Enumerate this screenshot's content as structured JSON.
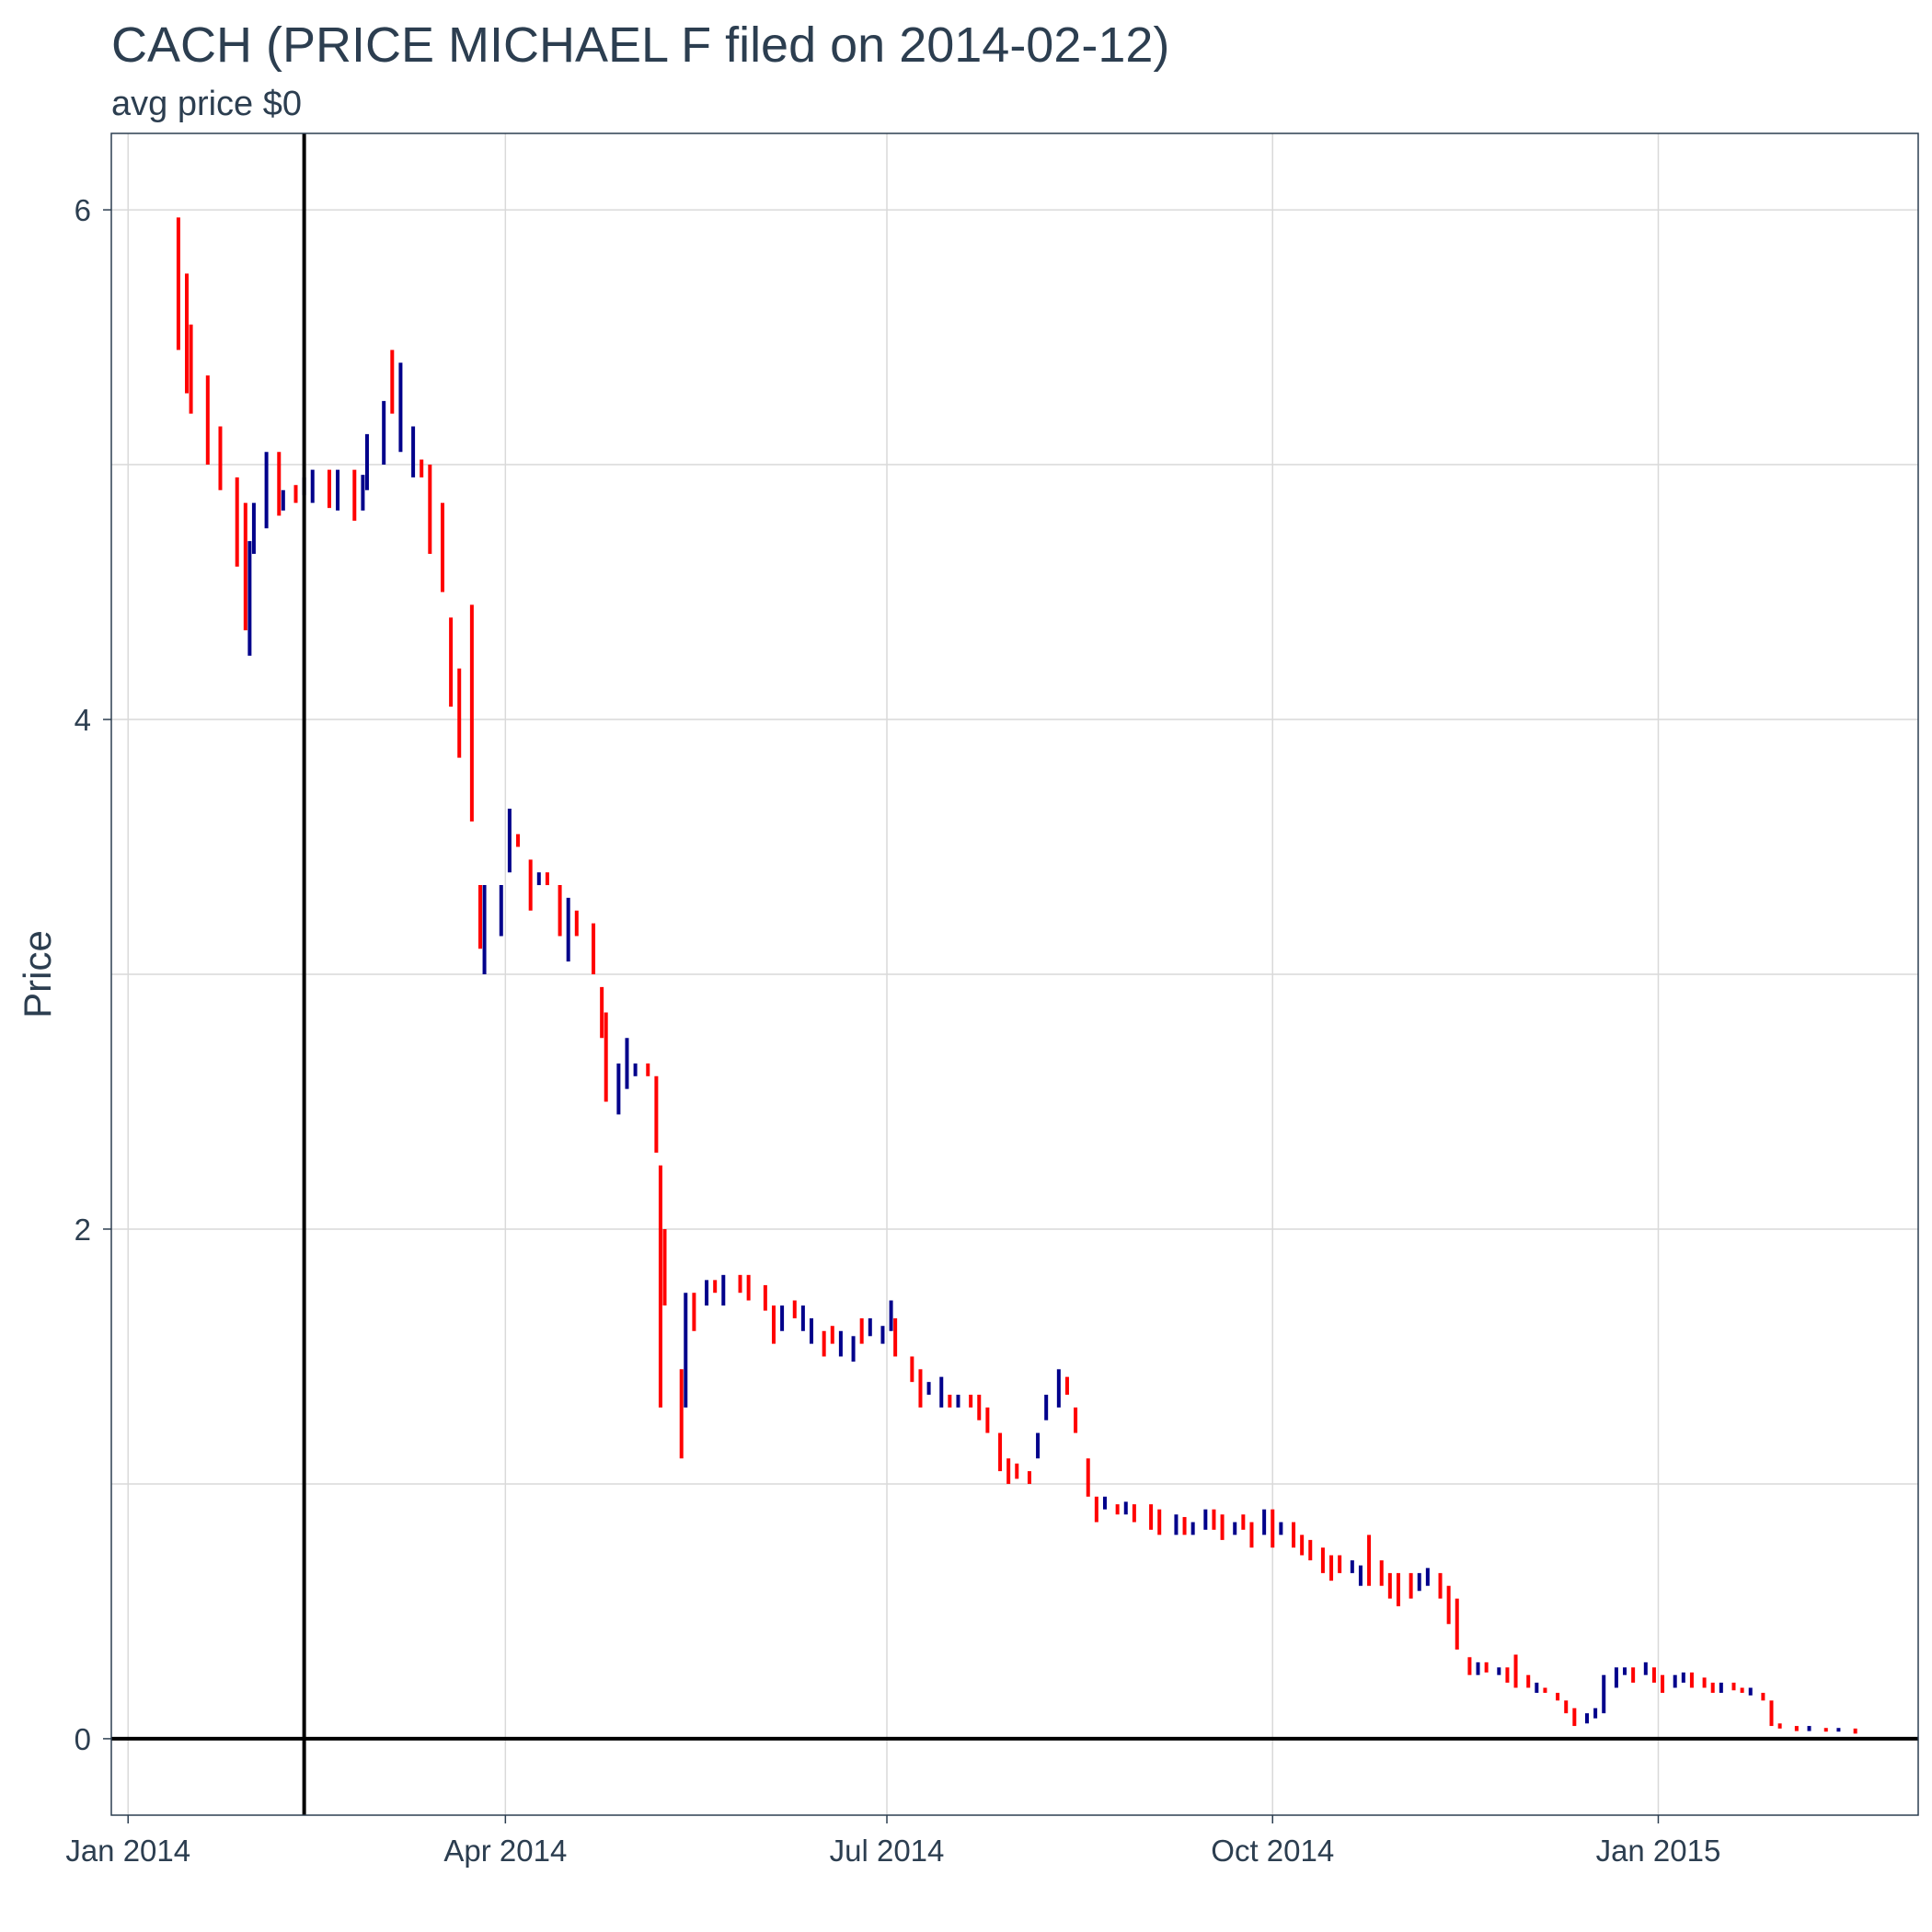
{
  "chart_data": {
    "type": "bar",
    "subtype": "ohlc-range-bars",
    "title": "CACH (PRICE MICHAEL F filed on 2014-02-12)",
    "subtitle": "avg price $0",
    "xlabel": "",
    "ylabel": "Price",
    "xlim": [
      "2013-12-28",
      "2015-03-04"
    ],
    "ylim": [
      -0.3,
      6.3
    ],
    "x_ticks": [
      {
        "date": "2014-01-01",
        "label": "Jan 2014"
      },
      {
        "date": "2014-04-01",
        "label": "Apr 2014"
      },
      {
        "date": "2014-07-01",
        "label": "Jul 2014"
      },
      {
        "date": "2014-10-01",
        "label": "Oct 2014"
      },
      {
        "date": "2015-01-01",
        "label": "Jan 2015"
      }
    ],
    "y_ticks": [
      0,
      2,
      4,
      6
    ],
    "y_minor_gridlines": [
      1,
      3,
      5
    ],
    "grid": true,
    "reference_lines": {
      "vertical_date": "2014-02-12",
      "horizontal_value": 0
    },
    "colors": {
      "up": "#00008b",
      "down": "#ff0000",
      "grid": "#d9d9d9",
      "text": "#2c3e50",
      "reference": "#000000"
    },
    "series": [
      {
        "values": [
          [
            "2014-01-13",
            5.45,
            5.97,
            "down"
          ],
          [
            "2014-01-15",
            5.28,
            5.75,
            "down"
          ],
          [
            "2014-01-16",
            5.2,
            5.55,
            "down"
          ],
          [
            "2014-01-20",
            5.0,
            5.35,
            "down"
          ],
          [
            "2014-01-23",
            4.9,
            5.15,
            "down"
          ],
          [
            "2014-01-27",
            4.6,
            4.95,
            "down"
          ],
          [
            "2014-01-29",
            4.35,
            4.85,
            "down"
          ],
          [
            "2014-01-30",
            4.25,
            4.7,
            "up"
          ],
          [
            "2014-01-31",
            4.65,
            4.85,
            "up"
          ],
          [
            "2014-02-03",
            4.75,
            5.05,
            "up"
          ],
          [
            "2014-02-06",
            4.8,
            5.05,
            "down"
          ],
          [
            "2014-02-07",
            4.82,
            4.9,
            "up"
          ],
          [
            "2014-02-10",
            4.85,
            4.92,
            "down"
          ],
          [
            "2014-02-12",
            4.88,
            4.95,
            "up"
          ],
          [
            "2014-02-14",
            4.85,
            4.98,
            "up"
          ],
          [
            "2014-02-18",
            4.83,
            4.98,
            "down"
          ],
          [
            "2014-02-20",
            4.82,
            4.98,
            "up"
          ],
          [
            "2014-02-24",
            4.78,
            4.98,
            "down"
          ],
          [
            "2014-02-26",
            4.82,
            4.96,
            "up"
          ],
          [
            "2014-02-27",
            4.9,
            5.12,
            "up"
          ],
          [
            "2014-03-03",
            5.0,
            5.25,
            "up"
          ],
          [
            "2014-03-05",
            5.2,
            5.45,
            "down"
          ],
          [
            "2014-03-07",
            5.05,
            5.4,
            "up"
          ],
          [
            "2014-03-10",
            4.95,
            5.15,
            "up"
          ],
          [
            "2014-03-12",
            4.95,
            5.02,
            "down"
          ],
          [
            "2014-03-14",
            4.65,
            5.0,
            "down"
          ],
          [
            "2014-03-17",
            4.5,
            4.85,
            "down"
          ],
          [
            "2014-03-19",
            4.05,
            4.4,
            "down"
          ],
          [
            "2014-03-21",
            3.85,
            4.2,
            "down"
          ],
          [
            "2014-03-24",
            3.6,
            4.45,
            "down"
          ],
          [
            "2014-03-26",
            3.1,
            3.35,
            "down"
          ],
          [
            "2014-03-27",
            3.0,
            3.35,
            "up"
          ],
          [
            "2014-03-31",
            3.15,
            3.35,
            "up"
          ],
          [
            "2014-04-02",
            3.4,
            3.65,
            "up"
          ],
          [
            "2014-04-04",
            3.5,
            3.55,
            "down"
          ],
          [
            "2014-04-07",
            3.25,
            3.45,
            "down"
          ],
          [
            "2014-04-09",
            3.35,
            3.4,
            "up"
          ],
          [
            "2014-04-11",
            3.35,
            3.4,
            "down"
          ],
          [
            "2014-04-14",
            3.15,
            3.35,
            "down"
          ],
          [
            "2014-04-16",
            3.05,
            3.3,
            "up"
          ],
          [
            "2014-04-18",
            3.15,
            3.25,
            "down"
          ],
          [
            "2014-04-22",
            3.0,
            3.2,
            "down"
          ],
          [
            "2014-04-24",
            2.75,
            2.95,
            "down"
          ],
          [
            "2014-04-25",
            2.5,
            2.85,
            "down"
          ],
          [
            "2014-04-28",
            2.45,
            2.65,
            "up"
          ],
          [
            "2014-04-30",
            2.55,
            2.75,
            "up"
          ],
          [
            "2014-05-02",
            2.6,
            2.65,
            "up"
          ],
          [
            "2014-05-05",
            2.6,
            2.65,
            "down"
          ],
          [
            "2014-05-07",
            2.3,
            2.6,
            "down"
          ],
          [
            "2014-05-08",
            1.3,
            2.25,
            "down"
          ],
          [
            "2014-05-09",
            1.7,
            2.0,
            "down"
          ],
          [
            "2014-05-13",
            1.1,
            1.45,
            "down"
          ],
          [
            "2014-05-14",
            1.3,
            1.75,
            "up"
          ],
          [
            "2014-05-16",
            1.6,
            1.75,
            "down"
          ],
          [
            "2014-05-19",
            1.7,
            1.8,
            "up"
          ],
          [
            "2014-05-21",
            1.75,
            1.8,
            "down"
          ],
          [
            "2014-05-23",
            1.7,
            1.82,
            "up"
          ],
          [
            "2014-05-27",
            1.75,
            1.82,
            "down"
          ],
          [
            "2014-05-29",
            1.72,
            1.82,
            "down"
          ],
          [
            "2014-06-02",
            1.68,
            1.78,
            "down"
          ],
          [
            "2014-06-04",
            1.55,
            1.7,
            "down"
          ],
          [
            "2014-06-06",
            1.6,
            1.7,
            "up"
          ],
          [
            "2014-06-09",
            1.65,
            1.72,
            "down"
          ],
          [
            "2014-06-11",
            1.6,
            1.7,
            "up"
          ],
          [
            "2014-06-13",
            1.55,
            1.65,
            "up"
          ],
          [
            "2014-06-16",
            1.5,
            1.6,
            "down"
          ],
          [
            "2014-06-18",
            1.55,
            1.62,
            "down"
          ],
          [
            "2014-06-20",
            1.5,
            1.6,
            "up"
          ],
          [
            "2014-06-23",
            1.48,
            1.58,
            "up"
          ],
          [
            "2014-06-25",
            1.55,
            1.65,
            "down"
          ],
          [
            "2014-06-27",
            1.58,
            1.65,
            "up"
          ],
          [
            "2014-06-30",
            1.55,
            1.62,
            "up"
          ],
          [
            "2014-07-02",
            1.6,
            1.72,
            "up"
          ],
          [
            "2014-07-03",
            1.5,
            1.65,
            "down"
          ],
          [
            "2014-07-07",
            1.4,
            1.5,
            "down"
          ],
          [
            "2014-07-09",
            1.3,
            1.45,
            "down"
          ],
          [
            "2014-07-11",
            1.35,
            1.4,
            "up"
          ],
          [
            "2014-07-14",
            1.3,
            1.42,
            "up"
          ],
          [
            "2014-07-16",
            1.3,
            1.35,
            "down"
          ],
          [
            "2014-07-18",
            1.3,
            1.35,
            "up"
          ],
          [
            "2014-07-21",
            1.3,
            1.35,
            "down"
          ],
          [
            "2014-07-23",
            1.25,
            1.35,
            "down"
          ],
          [
            "2014-07-25",
            1.2,
            1.3,
            "down"
          ],
          [
            "2014-07-28",
            1.05,
            1.2,
            "down"
          ],
          [
            "2014-07-30",
            1.0,
            1.1,
            "down"
          ],
          [
            "2014-08-01",
            1.02,
            1.08,
            "down"
          ],
          [
            "2014-08-04",
            1.0,
            1.05,
            "down"
          ],
          [
            "2014-08-06",
            1.1,
            1.2,
            "up"
          ],
          [
            "2014-08-08",
            1.25,
            1.35,
            "up"
          ],
          [
            "2014-08-11",
            1.3,
            1.45,
            "up"
          ],
          [
            "2014-08-13",
            1.35,
            1.42,
            "down"
          ],
          [
            "2014-08-15",
            1.2,
            1.3,
            "down"
          ],
          [
            "2014-08-18",
            0.95,
            1.1,
            "down"
          ],
          [
            "2014-08-20",
            0.85,
            0.95,
            "down"
          ],
          [
            "2014-08-22",
            0.9,
            0.95,
            "up"
          ],
          [
            "2014-08-25",
            0.88,
            0.92,
            "down"
          ],
          [
            "2014-08-27",
            0.88,
            0.93,
            "up"
          ],
          [
            "2014-08-29",
            0.85,
            0.92,
            "down"
          ],
          [
            "2014-09-02",
            0.82,
            0.92,
            "down"
          ],
          [
            "2014-09-04",
            0.8,
            0.9,
            "down"
          ],
          [
            "2014-09-08",
            0.8,
            0.88,
            "up"
          ],
          [
            "2014-09-10",
            0.8,
            0.87,
            "down"
          ],
          [
            "2014-09-12",
            0.8,
            0.85,
            "up"
          ],
          [
            "2014-09-15",
            0.82,
            0.9,
            "up"
          ],
          [
            "2014-09-17",
            0.82,
            0.9,
            "down"
          ],
          [
            "2014-09-19",
            0.78,
            0.88,
            "down"
          ],
          [
            "2014-09-22",
            0.8,
            0.85,
            "up"
          ],
          [
            "2014-09-24",
            0.82,
            0.88,
            "down"
          ],
          [
            "2014-09-26",
            0.75,
            0.85,
            "down"
          ],
          [
            "2014-09-29",
            0.8,
            0.9,
            "up"
          ],
          [
            "2014-10-01",
            0.75,
            0.9,
            "down"
          ],
          [
            "2014-10-03",
            0.8,
            0.85,
            "up"
          ],
          [
            "2014-10-06",
            0.75,
            0.85,
            "down"
          ],
          [
            "2014-10-08",
            0.72,
            0.8,
            "down"
          ],
          [
            "2014-10-10",
            0.7,
            0.78,
            "down"
          ],
          [
            "2014-10-13",
            0.65,
            0.75,
            "down"
          ],
          [
            "2014-10-15",
            0.62,
            0.72,
            "down"
          ],
          [
            "2014-10-17",
            0.65,
            0.72,
            "down"
          ],
          [
            "2014-10-20",
            0.65,
            0.7,
            "up"
          ],
          [
            "2014-10-22",
            0.6,
            0.68,
            "up"
          ],
          [
            "2014-10-24",
            0.6,
            0.8,
            "down"
          ],
          [
            "2014-10-27",
            0.6,
            0.7,
            "down"
          ],
          [
            "2014-10-29",
            0.55,
            0.65,
            "down"
          ],
          [
            "2014-10-31",
            0.52,
            0.65,
            "down"
          ],
          [
            "2014-11-03",
            0.55,
            0.65,
            "down"
          ],
          [
            "2014-11-05",
            0.58,
            0.65,
            "up"
          ],
          [
            "2014-11-07",
            0.6,
            0.67,
            "up"
          ],
          [
            "2014-11-10",
            0.55,
            0.65,
            "down"
          ],
          [
            "2014-11-12",
            0.45,
            0.6,
            "down"
          ],
          [
            "2014-11-14",
            0.35,
            0.55,
            "down"
          ],
          [
            "2014-11-17",
            0.25,
            0.32,
            "down"
          ],
          [
            "2014-11-19",
            0.25,
            0.3,
            "up"
          ],
          [
            "2014-11-21",
            0.26,
            0.3,
            "down"
          ],
          [
            "2014-11-24",
            0.25,
            0.28,
            "up"
          ],
          [
            "2014-11-26",
            0.22,
            0.28,
            "down"
          ],
          [
            "2014-11-28",
            0.2,
            0.33,
            "down"
          ],
          [
            "2014-12-01",
            0.2,
            0.25,
            "down"
          ],
          [
            "2014-12-03",
            0.18,
            0.22,
            "up"
          ],
          [
            "2014-12-05",
            0.18,
            0.2,
            "down"
          ],
          [
            "2014-12-08",
            0.15,
            0.18,
            "down"
          ],
          [
            "2014-12-10",
            0.1,
            0.15,
            "down"
          ],
          [
            "2014-12-12",
            0.05,
            0.12,
            "down"
          ],
          [
            "2014-12-15",
            0.06,
            0.1,
            "up"
          ],
          [
            "2014-12-17",
            0.08,
            0.12,
            "up"
          ],
          [
            "2014-12-19",
            0.1,
            0.25,
            "up"
          ],
          [
            "2014-12-22",
            0.2,
            0.28,
            "up"
          ],
          [
            "2014-12-24",
            0.25,
            0.28,
            "up"
          ],
          [
            "2014-12-26",
            0.22,
            0.28,
            "down"
          ],
          [
            "2014-12-29",
            0.25,
            0.3,
            "up"
          ],
          [
            "2014-12-31",
            0.22,
            0.28,
            "down"
          ],
          [
            "2015-01-02",
            0.18,
            0.25,
            "down"
          ],
          [
            "2015-01-05",
            0.2,
            0.25,
            "up"
          ],
          [
            "2015-01-07",
            0.22,
            0.26,
            "up"
          ],
          [
            "2015-01-09",
            0.2,
            0.26,
            "down"
          ],
          [
            "2015-01-12",
            0.2,
            0.24,
            "down"
          ],
          [
            "2015-01-14",
            0.18,
            0.22,
            "down"
          ],
          [
            "2015-01-16",
            0.18,
            0.22,
            "up"
          ],
          [
            "2015-01-19",
            0.19,
            0.22,
            "down"
          ],
          [
            "2015-01-21",
            0.18,
            0.2,
            "down"
          ],
          [
            "2015-01-23",
            0.17,
            0.2,
            "up"
          ],
          [
            "2015-01-26",
            0.15,
            0.18,
            "down"
          ],
          [
            "2015-01-28",
            0.05,
            0.15,
            "down"
          ],
          [
            "2015-01-30",
            0.04,
            0.06,
            "down"
          ],
          [
            "2015-02-03",
            0.03,
            0.05,
            "down"
          ],
          [
            "2015-02-06",
            0.03,
            0.05,
            "up"
          ],
          [
            "2015-02-10",
            0.03,
            0.04,
            "down"
          ],
          [
            "2015-02-13",
            0.03,
            0.04,
            "up"
          ],
          [
            "2015-02-17",
            0.02,
            0.04,
            "down"
          ]
        ]
      }
    ]
  }
}
